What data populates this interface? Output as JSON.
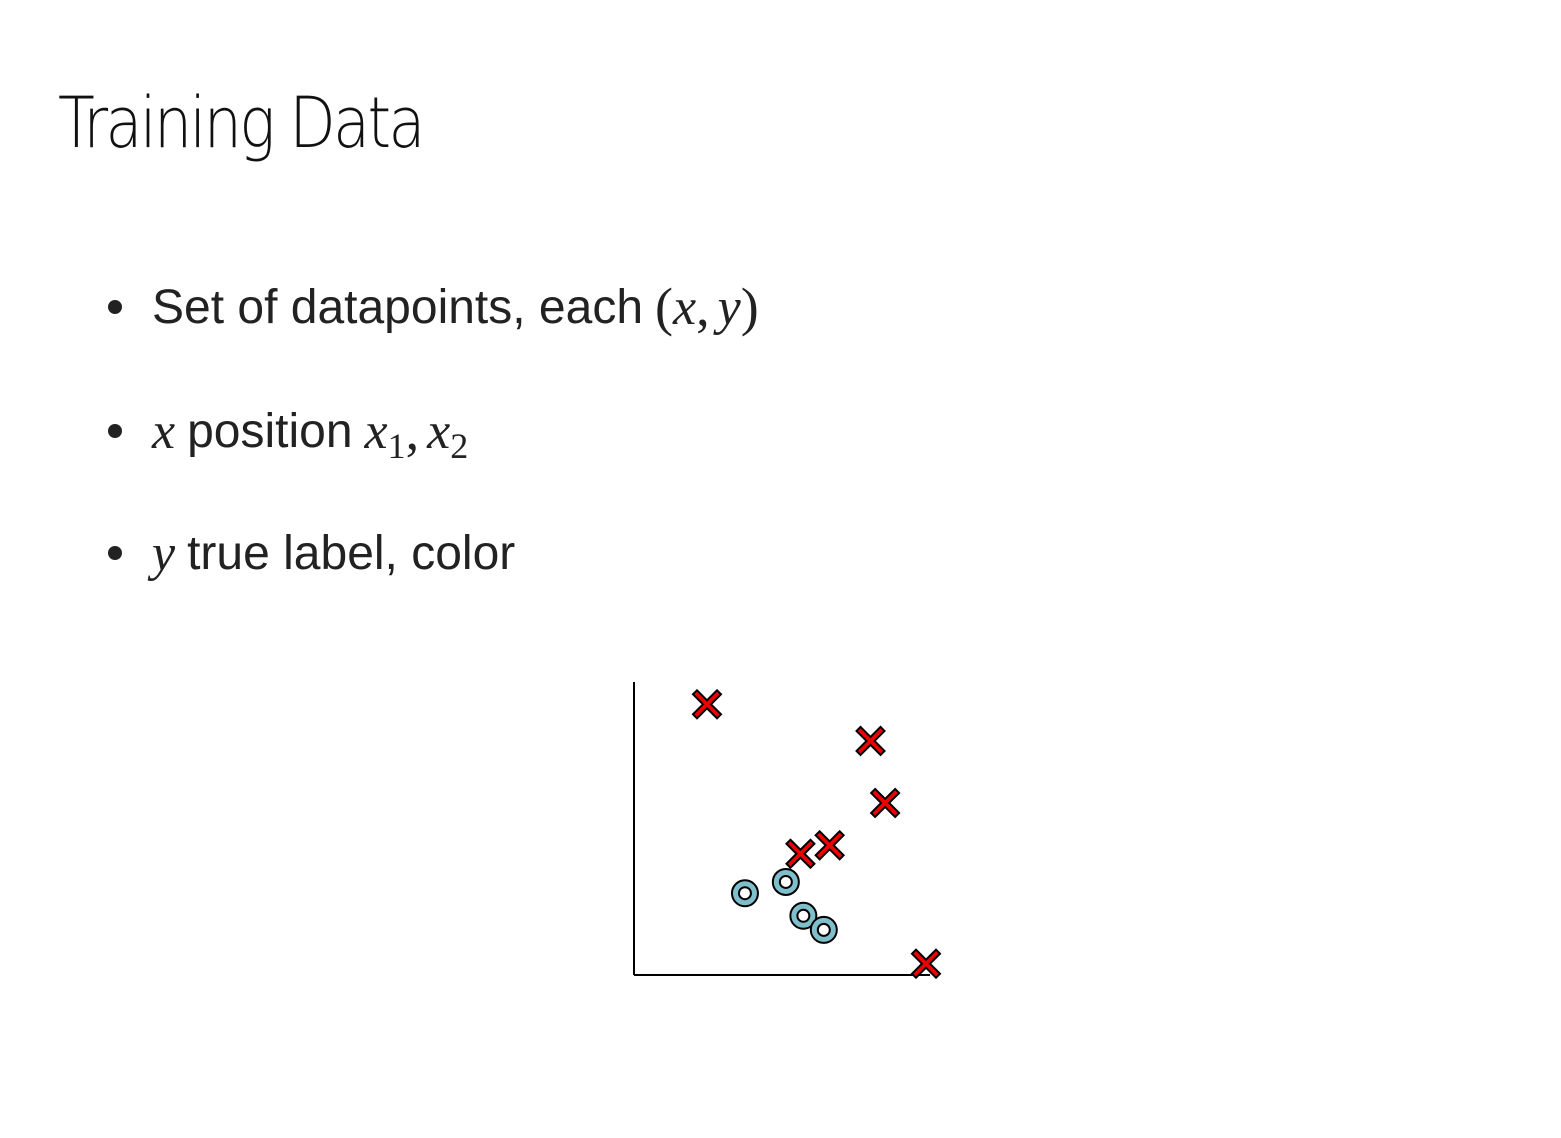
{
  "slide": {
    "title": "Training Data"
  },
  "bullets": [
    {
      "text": "Set of datapoints, each",
      "math_open": "(",
      "math_x": "x",
      "math_comma": ",",
      "math_y": "y",
      "math_close": ")"
    },
    {
      "math_x": "x",
      "text": "position",
      "math_x1": "x",
      "sub1": "1",
      "comma": ",",
      "math_x2": "x",
      "sub2": "2"
    },
    {
      "math_y": "y",
      "text": "true label, color"
    }
  ],
  "chart_data": {
    "type": "scatter",
    "title": "",
    "xlabel": "",
    "ylabel": "",
    "xlim": [
      0,
      10
    ],
    "ylim": [
      0,
      10
    ],
    "grid": false,
    "axes": "left-bottom",
    "colors": {
      "cross_fill": "#ee0000",
      "circle_fill": "#7fbfcc",
      "stroke": "#000000"
    },
    "series": [
      {
        "marker": "cross",
        "points": [
          {
            "x": 2.5,
            "y": 9.6
          },
          {
            "x": 8.1,
            "y": 8.3
          },
          {
            "x": 8.6,
            "y": 6.1
          },
          {
            "x": 5.7,
            "y": 4.3
          },
          {
            "x": 6.7,
            "y": 4.6
          },
          {
            "x": 10.0,
            "y": 0.4
          }
        ]
      },
      {
        "marker": "circle",
        "points": [
          {
            "x": 3.8,
            "y": 2.9
          },
          {
            "x": 5.2,
            "y": 3.3
          },
          {
            "x": 5.8,
            "y": 2.1
          },
          {
            "x": 6.5,
            "y": 1.6
          }
        ]
      }
    ]
  }
}
